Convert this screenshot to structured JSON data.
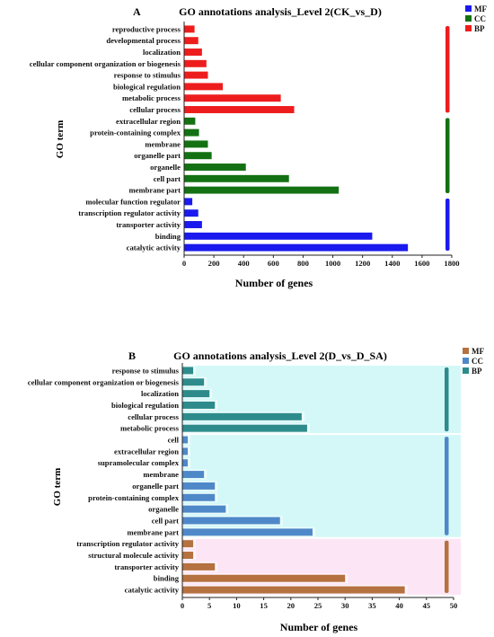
{
  "chart_data": [
    {
      "panel": "A",
      "type": "bar",
      "orientation": "horizontal",
      "title": "GO annotations analysis_Level 2(CK_vs_D)",
      "xlabel": "Number of genes",
      "ylabel": "GO term",
      "xlim": [
        0,
        1800
      ],
      "xticks": [
        "0",
        "200",
        "400",
        "600",
        "800",
        "1000",
        "1200",
        "1400",
        "1600",
        "1800"
      ],
      "legend": {
        "placement": "top-right",
        "items": [
          {
            "label": "MF",
            "color": "#1a1aee"
          },
          {
            "label": "CC",
            "color": "#137113"
          },
          {
            "label": "BP",
            "color": "#ee1d1d"
          }
        ]
      },
      "categories": [
        "reproductive process",
        "developmental process",
        "localization",
        "cellular component organization or biogenesis",
        "response to stimulus",
        "biological regulation",
        "metabolic process",
        "cellular process",
        "extracellular region",
        "protein-containing complex",
        "membrane",
        "organelle part",
        "organelle",
        "cell part",
        "membrane part",
        "molecular function regulator",
        "transcription regulator activity",
        "transporter activity",
        "binding",
        "catalytic activity"
      ],
      "groups": [
        "BP",
        "BP",
        "BP",
        "BP",
        "BP",
        "BP",
        "BP",
        "BP",
        "CC",
        "CC",
        "CC",
        "CC",
        "CC",
        "CC",
        "CC",
        "MF",
        "MF",
        "MF",
        "MF",
        "MF"
      ],
      "values": [
        70,
        95,
        120,
        150,
        160,
        260,
        650,
        740,
        75,
        100,
        160,
        185,
        415,
        705,
        1040,
        55,
        95,
        120,
        1265,
        1505
      ]
    },
    {
      "panel": "B",
      "type": "bar",
      "orientation": "horizontal",
      "title": "GO annotations analysis_Level 2(D_vs_D_SA)",
      "xlabel": "Number of genes",
      "ylabel": "GO term",
      "xlim": [
        0,
        50
      ],
      "xticks": [
        "0",
        "5",
        "10",
        "15",
        "20",
        "25",
        "30",
        "35",
        "40",
        "45",
        "50"
      ],
      "legend": {
        "placement": "top-right",
        "items": [
          {
            "label": "MF",
            "color": "#b5713f"
          },
          {
            "label": "CC",
            "color": "#4f88c8"
          },
          {
            "label": "BP",
            "color": "#2e8b8b"
          }
        ]
      },
      "categories": [
        "response to stimulus",
        "cellular component organization or biogenesis",
        "localization",
        "biological regulation",
        "cellular process",
        "metabolic process",
        "cell",
        "extracellular region",
        "supramolecular complex",
        "membrane",
        "organelle part",
        "protein-containing complex",
        "organelle",
        "cell part",
        "membrane part",
        "transcription regulator activity",
        "structural molecule activity",
        "transporter activity",
        "binding",
        "catalytic activity"
      ],
      "groups": [
        "BP",
        "BP",
        "BP",
        "BP",
        "BP",
        "BP",
        "CC",
        "CC",
        "CC",
        "CC",
        "CC",
        "CC",
        "CC",
        "CC",
        "CC",
        "MF",
        "MF",
        "MF",
        "MF",
        "MF"
      ],
      "values": [
        2,
        4,
        5,
        6,
        22,
        23,
        1,
        1,
        1,
        4,
        6,
        6,
        8,
        18,
        24,
        2,
        2,
        6,
        30,
        41
      ]
    }
  ]
}
